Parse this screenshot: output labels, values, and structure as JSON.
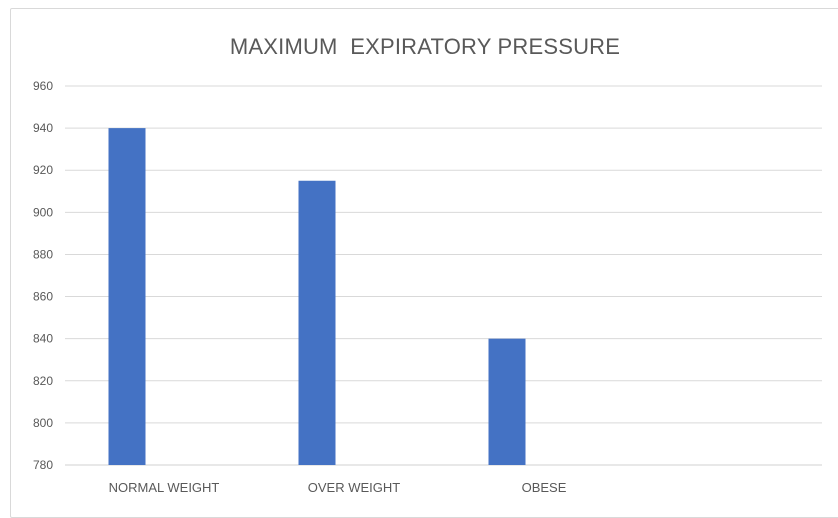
{
  "chart_data": {
    "type": "bar",
    "title": "MAXIMUM  EXPIRATORY PRESSURE",
    "categories": [
      "NORMAL WEIGHT",
      "OVER WEIGHT",
      "OBESE"
    ],
    "values": [
      940,
      915,
      840
    ],
    "ylim": [
      780,
      960
    ],
    "yticks": [
      "780",
      "800",
      "820",
      "840",
      "860",
      "880",
      "900",
      "920",
      "940",
      "960"
    ],
    "grid": true,
    "legend": "none",
    "bar_color": "#4472c4",
    "grid_color": "#d9d9d9"
  }
}
